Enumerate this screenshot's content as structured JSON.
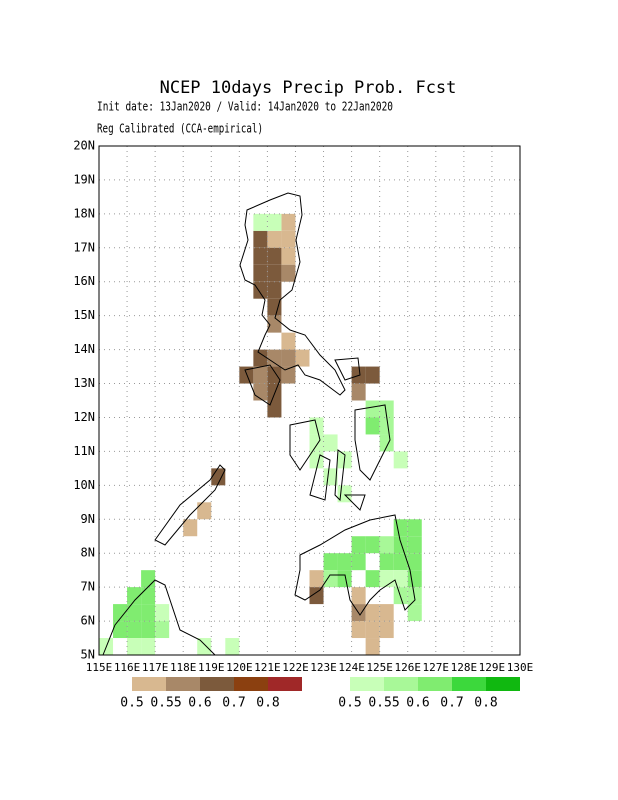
{
  "header": {
    "title": "NCEP 10days Precip Prob. Fcst",
    "subtitle": [
      "Init date: 13Jan2020 / Valid: 14Jan2020 to 22Jan2020",
      "Reg Calibrated (CCA-empirical)"
    ]
  },
  "map": {
    "xlim": [
      115,
      130
    ],
    "ylim": [
      5,
      20
    ],
    "xticks": [
      {
        "value": 115,
        "label": "115E"
      },
      {
        "value": 116,
        "label": "116E"
      },
      {
        "value": 117,
        "label": "117E"
      },
      {
        "value": 118,
        "label": "118E"
      },
      {
        "value": 119,
        "label": "119E"
      },
      {
        "value": 120,
        "label": "120E"
      },
      {
        "value": 121,
        "label": "121E"
      },
      {
        "value": 122,
        "label": "122E"
      },
      {
        "value": 123,
        "label": "123E"
      },
      {
        "value": 124,
        "label": "124E"
      },
      {
        "value": 125,
        "label": "125E"
      },
      {
        "value": 126,
        "label": "126E"
      },
      {
        "value": 127,
        "label": "127E"
      },
      {
        "value": 128,
        "label": "128E"
      },
      {
        "value": 129,
        "label": "129E"
      },
      {
        "value": 130,
        "label": "130E"
      }
    ],
    "yticks": [
      {
        "value": 5,
        "label": "5N"
      },
      {
        "value": 6,
        "label": "6N"
      },
      {
        "value": 7,
        "label": "7N"
      },
      {
        "value": 8,
        "label": "8N"
      },
      {
        "value": 9,
        "label": "9N"
      },
      {
        "value": 10,
        "label": "10N"
      },
      {
        "value": 11,
        "label": "11N"
      },
      {
        "value": 12,
        "label": "12N"
      },
      {
        "value": 13,
        "label": "13N"
      },
      {
        "value": 14,
        "label": "14N"
      },
      {
        "value": 15,
        "label": "15N"
      },
      {
        "value": 16,
        "label": "16N"
      },
      {
        "value": 17,
        "label": "17N"
      },
      {
        "value": 18,
        "label": "18N"
      },
      {
        "value": 19,
        "label": "19N"
      },
      {
        "value": 20,
        "label": "20N"
      }
    ],
    "grid": true,
    "layers": [
      {
        "name": "below",
        "cells": [
          [
            121.5,
            17.5,
            0.5
          ],
          [
            120.5,
            17,
            0.6
          ],
          [
            121,
            17,
            0.5
          ],
          [
            121.5,
            17,
            0.5
          ],
          [
            120.5,
            16.5,
            0.6
          ],
          [
            121,
            16.5,
            0.6
          ],
          [
            121.5,
            16.5,
            0.5
          ],
          [
            120.5,
            16,
            0.6
          ],
          [
            121,
            16,
            0.6
          ],
          [
            121.5,
            16,
            0.55
          ],
          [
            120.5,
            15.5,
            0.6
          ],
          [
            121,
            15.5,
            0.6
          ],
          [
            121,
            15,
            0.6
          ],
          [
            121,
            14.5,
            0.55
          ],
          [
            121.5,
            14,
            0.5
          ],
          [
            120.5,
            13.5,
            0.6
          ],
          [
            121,
            13.5,
            0.55
          ],
          [
            121.5,
            13.5,
            0.55
          ],
          [
            122,
            13.5,
            0.5
          ],
          [
            120,
            13,
            0.6
          ],
          [
            120.5,
            13,
            0.55
          ],
          [
            121,
            13,
            0.6
          ],
          [
            121.5,
            13,
            0.55
          ],
          [
            124,
            13,
            0.6
          ],
          [
            124.5,
            13,
            0.6
          ],
          [
            120.5,
            12.5,
            0.55
          ],
          [
            121,
            12.5,
            0.6
          ],
          [
            124,
            12.5,
            0.55
          ],
          [
            121,
            12,
            0.6
          ],
          [
            119,
            10,
            0.6
          ],
          [
            118.5,
            9,
            0.5
          ],
          [
            118,
            8.5,
            0.5
          ],
          [
            122.5,
            7,
            0.5
          ],
          [
            122.5,
            6.5,
            0.6
          ],
          [
            124,
            6.5,
            0.5
          ],
          [
            124,
            6,
            0.55
          ],
          [
            124.5,
            6,
            0.5
          ],
          [
            125,
            6,
            0.5
          ],
          [
            124,
            5.5,
            0.5
          ],
          [
            124.5,
            5.5,
            0.5
          ],
          [
            125,
            5.5,
            0.5
          ],
          [
            124.5,
            5,
            0.5
          ]
        ]
      },
      {
        "name": "above",
        "cells": [
          [
            120.5,
            17.5,
            0.5
          ],
          [
            121,
            17.5,
            0.5
          ],
          [
            122.5,
            11.5,
            0.5
          ],
          [
            122.5,
            11,
            0.5
          ],
          [
            123,
            11,
            0.5
          ],
          [
            122.5,
            10.5,
            0.5
          ],
          [
            123.5,
            10.5,
            0.5
          ],
          [
            123,
            10,
            0.5
          ],
          [
            123.5,
            9.5,
            0.5
          ],
          [
            124.5,
            12,
            0.55
          ],
          [
            125,
            12,
            0.55
          ],
          [
            124.5,
            11.5,
            0.6
          ],
          [
            125,
            11.5,
            0.55
          ],
          [
            125,
            11,
            0.55
          ],
          [
            125.5,
            10.5,
            0.5
          ],
          [
            125.5,
            8.5,
            0.6
          ],
          [
            126,
            8.5,
            0.6
          ],
          [
            124,
            8,
            0.6
          ],
          [
            124.5,
            8,
            0.6
          ],
          [
            125,
            8,
            0.55
          ],
          [
            125.5,
            8,
            0.6
          ],
          [
            126,
            8,
            0.6
          ],
          [
            123,
            7.5,
            0.6
          ],
          [
            123.5,
            7.5,
            0.6
          ],
          [
            124,
            7.5,
            0.6
          ],
          [
            125,
            7.5,
            0.6
          ],
          [
            125.5,
            7.5,
            0.6
          ],
          [
            126,
            7.5,
            0.6
          ],
          [
            123,
            7,
            0.55
          ],
          [
            123.5,
            7,
            0.6
          ],
          [
            124.5,
            7,
            0.6
          ],
          [
            125,
            7,
            0.5
          ],
          [
            125.5,
            7,
            0.5
          ],
          [
            126,
            7,
            0.6
          ],
          [
            125.5,
            6.5,
            0.55
          ],
          [
            126,
            6.5,
            0.55
          ],
          [
            126,
            6,
            0.55
          ],
          [
            116.5,
            7,
            0.6
          ],
          [
            116,
            6.5,
            0.6
          ],
          [
            116.5,
            6.5,
            0.6
          ],
          [
            115.5,
            6,
            0.6
          ],
          [
            116,
            6,
            0.6
          ],
          [
            116.5,
            6,
            0.6
          ],
          [
            117,
            6,
            0.5
          ],
          [
            115.5,
            5.5,
            0.6
          ],
          [
            116,
            5.5,
            0.6
          ],
          [
            116.5,
            5.5,
            0.6
          ],
          [
            117,
            5.5,
            0.55
          ],
          [
            115,
            5,
            0.5
          ],
          [
            116,
            5,
            0.5
          ],
          [
            116.5,
            5,
            0.5
          ],
          [
            118.5,
            5,
            0.5
          ],
          [
            119.5,
            5,
            0.5
          ]
        ]
      }
    ]
  },
  "legends": [
    {
      "colors": [
        "#d8b890",
        "#a88868",
        "#7c5a3c",
        "#8b4010",
        "#a02828"
      ],
      "labels": [
        0.5,
        0.55,
        0.6,
        0.7,
        0.8
      ]
    },
    {
      "colors": [
        "#c8ffb8",
        "#a8f898",
        "#80ec70",
        "#3cd83c",
        "#10b810"
      ],
      "labels": [
        0.5,
        0.55,
        0.6,
        0.7,
        0.8
      ]
    }
  ]
}
